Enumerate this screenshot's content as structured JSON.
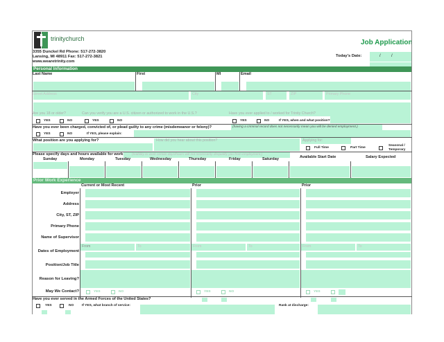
{
  "header": {
    "logo_text": "trinitychurch",
    "title": "Job Application",
    "address_line1": "3355 Dunckel Rd   Phone: 517-272-3820",
    "address_line2": "Lansing, MI 48911   Fax: 517-272-3821",
    "website": "www.wearetrinity.com",
    "todays_date_label": "Today's Date:",
    "date_sep1": "/",
    "date_sep2": "/"
  },
  "personal": {
    "section_title": "Personal Information",
    "last_name": "Last Name",
    "first": "First",
    "mi": "MI",
    "email": "Email",
    "street_address": "Street Address",
    "city": "City",
    "st": "ST",
    "zip": "ZIP",
    "primary_phone": "Primary Phone",
    "q_age": "Are you 18 or older?",
    "q_citizen": "Can you verify you are a U.S. citizen or authorized to work in the U.S.?",
    "q_applied": "Have you ever applied to / worked for Trinity Church?",
    "yes": "YES",
    "no": "NO",
    "if_yes_when": "If YES, when and what position?",
    "q_crime": "Have you ever been charged, convicted of, or plead guilty to any crime (misdemeanor or felony)?",
    "crime_note": "(having a criminal record does not necessarily mean you will be denied employment.)",
    "if_yes_explain": "If YES, please explain:",
    "q_position": "What position are you applying for?",
    "q_hear": "How did you hear about this position?",
    "applying_for": "Applying for:",
    "full_time": "Full Time",
    "part_time": "Part Time",
    "seasonal": "Seasonal /",
    "temporary": "Temporary",
    "q_days": "Please specify days and hours available for work:",
    "days_note": "(Inability to work certain days/hours will not necessarily disqualify you from employment.)",
    "days": [
      "Sunday",
      "Monday",
      "Tuesday",
      "Wednesday",
      "Thursday",
      "Friday",
      "Saturday"
    ],
    "available_start": "Available Start Date",
    "salary_expected": "Salary Expected"
  },
  "work": {
    "section_title": "Prior Work Experience",
    "col_current": "Current or Most Recent",
    "col_prior1": "Prior",
    "col_prior2": "Prior",
    "row_labels": [
      "Employer",
      "Address",
      "City, ST, ZIP",
      "Primary Phone",
      "Name of Supervisor",
      "Dates of Employment",
      "Position/Job Title",
      "Reason for Leaving?",
      "May We Contact?"
    ],
    "from": "From",
    "to": "To",
    "yes": "YES",
    "no": "NO"
  },
  "military": {
    "question": "Have you ever served in the Armed Forces of the United States?",
    "yes": "YES",
    "no": "NO",
    "if_yes_branch": "If YES, what branch of service:",
    "rank": "Rank at discharge:"
  }
}
